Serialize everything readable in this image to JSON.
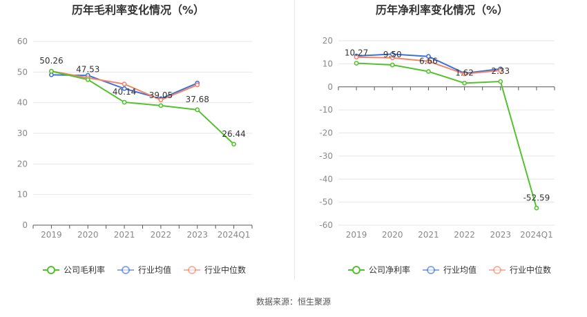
{
  "source_note": "数据来源：恒生聚源",
  "colors": {
    "company": "#52c22c",
    "industry_avg": "#3f6fd8",
    "industry_median": "#f0866a",
    "grid": "#e6e6e6",
    "axis": "#555555",
    "tick_text": "#888888",
    "title_text": "#333333"
  },
  "chart_data": [
    {
      "type": "line",
      "title": "历年毛利率变化情况（%）",
      "categories": [
        "2019",
        "2020",
        "2021",
        "2022",
        "2023",
        "2024Q1"
      ],
      "ylim": [
        0,
        60
      ],
      "yticks": [
        0,
        10,
        20,
        30,
        40,
        50,
        60
      ],
      "grid": true,
      "legend_position": "bottom",
      "series": [
        {
          "name": "公司毛利率",
          "key": "company",
          "values": [
            50.26,
            47.53,
            40.14,
            39.05,
            37.68,
            26.44
          ],
          "labels": [
            "50.26",
            "47.53",
            "40.14",
            "39.05",
            "37.68",
            "26.44"
          ]
        },
        {
          "name": "行业均值",
          "key": "industry_avg",
          "values": [
            49.1,
            48.9,
            44.6,
            41.3,
            46.4,
            null
          ]
        },
        {
          "name": "行业中位数",
          "key": "industry_median",
          "values": [
            50.3,
            48.1,
            46.1,
            40.9,
            45.8,
            null
          ]
        }
      ]
    },
    {
      "type": "line",
      "title": "历年净利率变化情况（%）",
      "categories": [
        "2019",
        "2020",
        "2021",
        "2022",
        "2023",
        "2024Q1"
      ],
      "ylim": [
        -60,
        20
      ],
      "yticks": [
        -60,
        -50,
        -40,
        -30,
        -20,
        -10,
        0,
        10,
        20
      ],
      "grid": true,
      "legend_position": "bottom",
      "series": [
        {
          "name": "公司净利率",
          "key": "company",
          "values": [
            10.27,
            9.5,
            6.66,
            1.62,
            2.33,
            -52.59
          ],
          "labels": [
            "10.27",
            "9.50",
            "6.66",
            "1.62",
            "2.33",
            "-52.59"
          ]
        },
        {
          "name": "行业均值",
          "key": "industry_avg",
          "values": [
            13.4,
            14.2,
            13.2,
            5.9,
            7.8,
            null
          ]
        },
        {
          "name": "行业中位数",
          "key": "industry_median",
          "values": [
            12.9,
            12.6,
            11.1,
            5.6,
            7.1,
            null
          ]
        }
      ]
    }
  ]
}
